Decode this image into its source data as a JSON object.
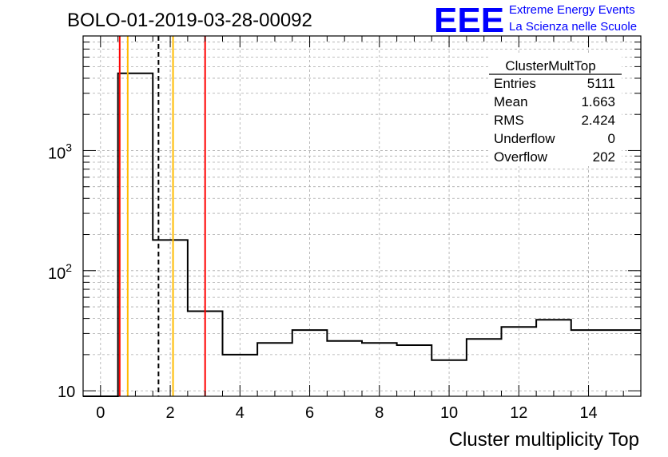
{
  "header": {
    "run_title": "BOLO-01-2019-03-28-00092",
    "logo_text": "EEE",
    "logo_line1": "Extreme Energy Events",
    "logo_line2": "La Scienza nelle Scuole"
  },
  "stats_box": {
    "title": "ClusterMultTop",
    "rows": [
      {
        "label": "Entries",
        "value": "5111"
      },
      {
        "label": "Mean",
        "value": "1.663"
      },
      {
        "label": "RMS",
        "value": "2.424"
      },
      {
        "label": "Underflow",
        "value": "0"
      },
      {
        "label": "Overflow",
        "value": "202"
      }
    ]
  },
  "colors": {
    "histogram": "#000000",
    "red_line": "#ff0000",
    "orange_line": "#ffbb00",
    "mean_line": "#000000",
    "logo": "#0000ff",
    "grid": "#aaaaaa"
  },
  "chart_data": {
    "type": "histogram",
    "title": "BOLO-01-2019-03-28-00092",
    "xlabel": "Cluster multiplicity Top",
    "ylabel": "",
    "yscale": "log",
    "xlim": [
      -0.5,
      15.5
    ],
    "ylim": [
      9,
      9000
    ],
    "grid": true,
    "bins": [
      {
        "x0": -0.5,
        "x1": 0.5,
        "value": 0
      },
      {
        "x0": 0.5,
        "x1": 1.5,
        "value": 4400
      },
      {
        "x0": 1.5,
        "x1": 2.5,
        "value": 180
      },
      {
        "x0": 2.5,
        "x1": 3.5,
        "value": 46
      },
      {
        "x0": 3.5,
        "x1": 4.5,
        "value": 20
      },
      {
        "x0": 4.5,
        "x1": 5.5,
        "value": 25
      },
      {
        "x0": 5.5,
        "x1": 6.5,
        "value": 32
      },
      {
        "x0": 6.5,
        "x1": 7.5,
        "value": 26
      },
      {
        "x0": 7.5,
        "x1": 8.5,
        "value": 25
      },
      {
        "x0": 8.5,
        "x1": 9.5,
        "value": 24
      },
      {
        "x0": 9.5,
        "x1": 10.5,
        "value": 18
      },
      {
        "x0": 10.5,
        "x1": 11.5,
        "value": 27
      },
      {
        "x0": 11.5,
        "x1": 12.5,
        "value": 34
      },
      {
        "x0": 12.5,
        "x1": 13.5,
        "value": 39
      },
      {
        "x0": 13.5,
        "x1": 15.5,
        "value": 32
      }
    ],
    "x_ticks": [
      "0",
      "2",
      "4",
      "6",
      "8",
      "10",
      "12",
      "14"
    ],
    "x_tick_values": [
      0,
      2,
      4,
      6,
      8,
      10,
      12,
      14
    ],
    "y_ticks": [
      {
        "value": 10,
        "base": "10",
        "exp": ""
      },
      {
        "value": 100,
        "base": "10",
        "exp": "2"
      },
      {
        "value": 1000,
        "base": "10",
        "exp": "3"
      }
    ],
    "vertical_lines": [
      {
        "x": 0.55,
        "color": "red",
        "style": "solid"
      },
      {
        "x": 0.78,
        "color": "orange",
        "style": "solid"
      },
      {
        "x": 1.663,
        "color": "black",
        "style": "dashed"
      },
      {
        "x": 2.08,
        "color": "orange",
        "style": "solid"
      },
      {
        "x": 3.0,
        "color": "red",
        "style": "solid"
      }
    ]
  }
}
